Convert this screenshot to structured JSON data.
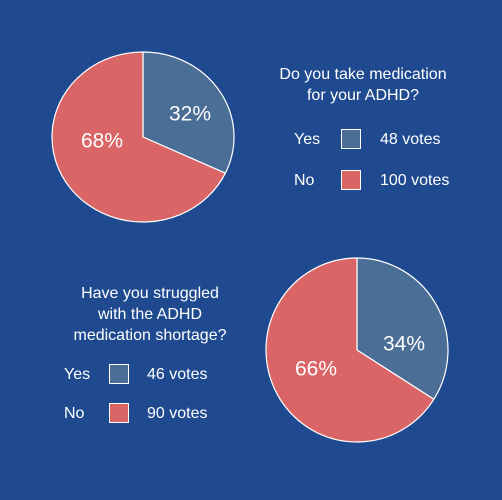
{
  "colors": {
    "background": "#1f4a8f",
    "yes": "#4a6e95",
    "no": "#d96566"
  },
  "chart_data": [
    {
      "type": "pie",
      "title": "Do you take medication for your ADHD?",
      "title_lines": [
        "Do you take medication",
        "for your ADHD?"
      ],
      "slices": [
        {
          "name": "Yes",
          "percent": 32,
          "label": "32%",
          "votes": 48,
          "votes_label": "48 votes",
          "color": "#4a6e95"
        },
        {
          "name": "No",
          "percent": 68,
          "label": "68%",
          "votes": 100,
          "votes_label": "100 votes",
          "color": "#d96566"
        }
      ]
    },
    {
      "type": "pie",
      "title": "Have you struggled with the ADHD medication shortage?",
      "title_lines": [
        "Have you struggled",
        "with the ADHD",
        "medication shortage?"
      ],
      "slices": [
        {
          "name": "Yes",
          "percent": 34,
          "label": "34%",
          "votes": 46,
          "votes_label": "46 votes",
          "color": "#4a6e95"
        },
        {
          "name": "No",
          "percent": 66,
          "label": "66%",
          "votes": 90,
          "votes_label": "90 votes",
          "color": "#d96566"
        }
      ]
    }
  ]
}
